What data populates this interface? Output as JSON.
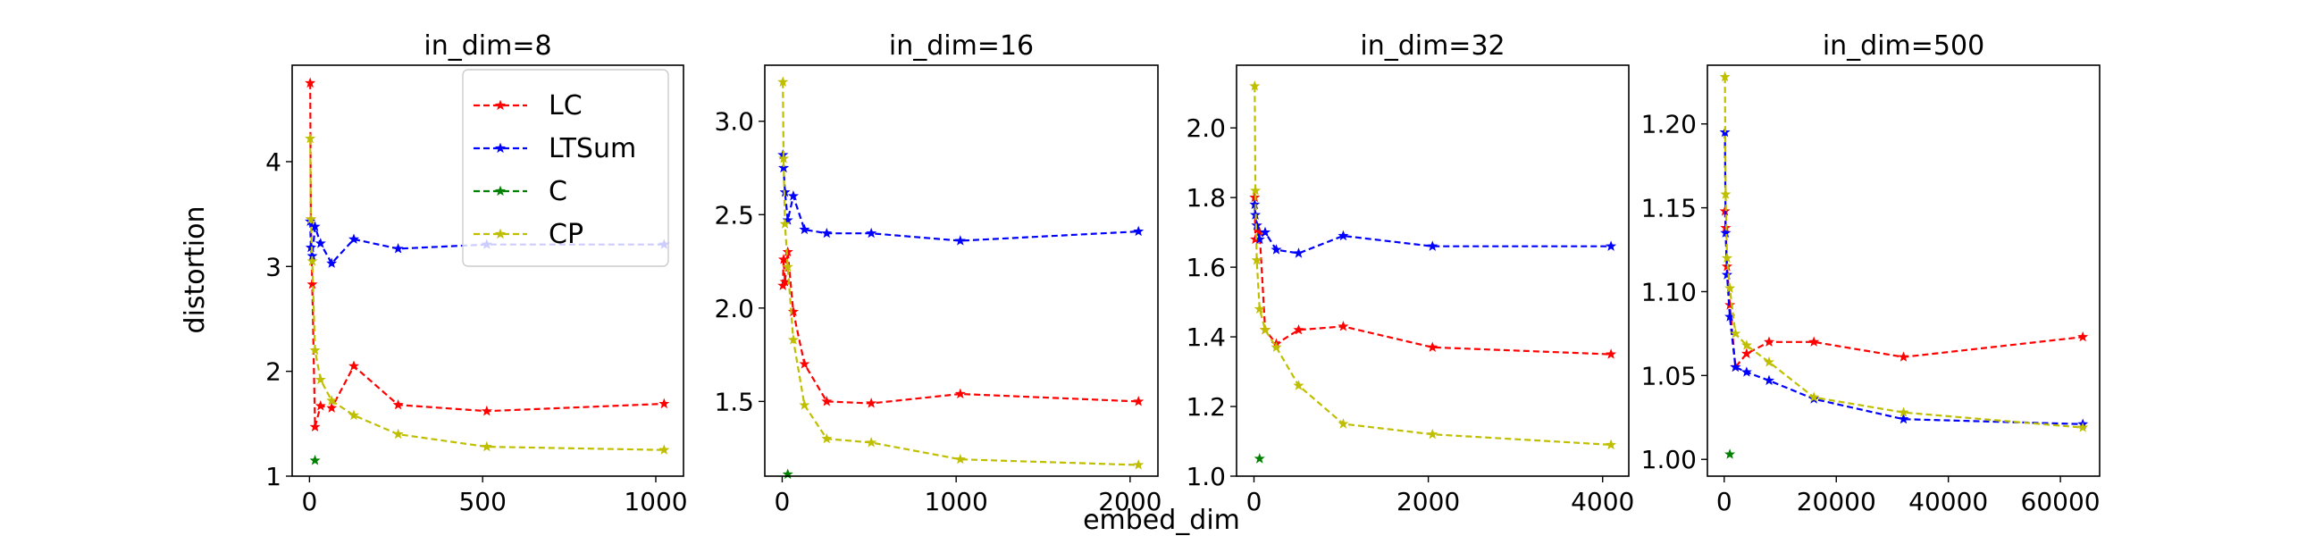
{
  "figure": {
    "ylabel": "distortion",
    "xlabel": "embed_dim"
  },
  "legend": [
    {
      "label": "LC",
      "color": "#ff0000"
    },
    {
      "label": "LTSum",
      "color": "#0000ff"
    },
    {
      "label": "C",
      "color": "#008000"
    },
    {
      "label": "CP",
      "color": "#bfbf00"
    }
  ],
  "chart_data": [
    {
      "type": "line",
      "title": "in_dim=8",
      "xlim": [
        -50,
        1080
      ],
      "ylim": [
        1,
        4.92
      ],
      "xticks": [
        0,
        500,
        1000
      ],
      "yticks": [
        1,
        2,
        3,
        4
      ],
      "series": [
        {
          "name": "LC",
          "color": "#ff0000",
          "x": [
            2,
            4,
            8,
            16,
            32,
            64,
            128,
            256,
            512,
            1024
          ],
          "y": [
            4.75,
            3.45,
            2.83,
            1.47,
            1.67,
            1.65,
            2.05,
            1.68,
            1.62,
            1.69
          ]
        },
        {
          "name": "LTSum",
          "color": "#0000ff",
          "x": [
            2,
            4,
            8,
            16,
            32,
            64,
            128,
            256,
            512,
            1024
          ],
          "y": [
            3.43,
            3.18,
            3.1,
            3.38,
            3.22,
            3.03,
            3.26,
            3.17,
            3.21,
            3.21
          ]
        },
        {
          "name": "C",
          "color": "#008000",
          "x": [
            16
          ],
          "y": [
            1.15
          ]
        },
        {
          "name": "CP",
          "color": "#bfbf00",
          "x": [
            2,
            4,
            8,
            16,
            32,
            64,
            128,
            256,
            512,
            1024
          ],
          "y": [
            4.22,
            3.45,
            3.05,
            2.2,
            1.92,
            1.72,
            1.58,
            1.4,
            1.28,
            1.25
          ]
        }
      ]
    },
    {
      "type": "line",
      "title": "in_dim=16",
      "xlim": [
        -100,
        2160
      ],
      "ylim": [
        1.1,
        3.3
      ],
      "xticks": [
        0,
        1000,
        2000
      ],
      "yticks": [
        1.5,
        2.0,
        2.5,
        3.0
      ],
      "series": [
        {
          "name": "LC",
          "color": "#ff0000",
          "x": [
            4,
            8,
            16,
            32,
            64,
            128,
            256,
            512,
            1024,
            2048
          ],
          "y": [
            2.12,
            2.26,
            2.14,
            2.3,
            1.98,
            1.7,
            1.5,
            1.49,
            1.54,
            1.5
          ]
        },
        {
          "name": "LTSum",
          "color": "#0000ff",
          "x": [
            4,
            8,
            16,
            32,
            64,
            128,
            256,
            512,
            1024,
            2048
          ],
          "y": [
            2.82,
            2.75,
            2.62,
            2.47,
            2.6,
            2.42,
            2.4,
            2.4,
            2.36,
            2.41
          ]
        },
        {
          "name": "C",
          "color": "#008000",
          "x": [
            32
          ],
          "y": [
            1.11
          ]
        },
        {
          "name": "CP",
          "color": "#bfbf00",
          "x": [
            4,
            8,
            16,
            32,
            64,
            128,
            256,
            512,
            1024,
            2048
          ],
          "y": [
            3.21,
            2.8,
            2.45,
            2.22,
            1.83,
            1.48,
            1.3,
            1.28,
            1.19,
            1.16
          ]
        }
      ]
    },
    {
      "type": "line",
      "title": "in_dim=32",
      "xlim": [
        -200,
        4300
      ],
      "ylim": [
        1.0,
        2.18
      ],
      "xticks": [
        0,
        2000,
        4000
      ],
      "yticks": [
        1.0,
        1.2,
        1.4,
        1.6,
        1.8,
        2.0
      ],
      "series": [
        {
          "name": "LC",
          "color": "#ff0000",
          "x": [
            8,
            16,
            32,
            64,
            128,
            256,
            512,
            1024,
            2048,
            4096
          ],
          "y": [
            1.8,
            1.68,
            1.72,
            1.7,
            1.42,
            1.38,
            1.42,
            1.43,
            1.37,
            1.35
          ]
        },
        {
          "name": "LTSum",
          "color": "#0000ff",
          "x": [
            8,
            16,
            32,
            64,
            128,
            256,
            512,
            1024,
            2048,
            4096
          ],
          "y": [
            1.78,
            1.75,
            1.72,
            1.68,
            1.7,
            1.65,
            1.64,
            1.69,
            1.66,
            1.66
          ]
        },
        {
          "name": "C",
          "color": "#008000",
          "x": [
            64
          ],
          "y": [
            1.05
          ]
        },
        {
          "name": "CP",
          "color": "#bfbf00",
          "x": [
            8,
            16,
            32,
            64,
            128,
            256,
            512,
            1024,
            2048,
            4096
          ],
          "y": [
            2.12,
            1.82,
            1.62,
            1.48,
            1.42,
            1.37,
            1.26,
            1.15,
            1.12,
            1.09
          ]
        }
      ]
    },
    {
      "type": "line",
      "title": "in_dim=500",
      "xlim": [
        -3000,
        67000
      ],
      "ylim": [
        0.99,
        1.235
      ],
      "xticks": [
        0,
        20000,
        40000,
        60000
      ],
      "yticks": [
        1.0,
        1.05,
        1.1,
        1.15,
        1.2
      ],
      "series": [
        {
          "name": "LC",
          "color": "#ff0000",
          "x": [
            125,
            250,
            500,
            1000,
            2000,
            4000,
            8000,
            16000,
            32000,
            64000
          ],
          "y": [
            1.148,
            1.138,
            1.115,
            1.092,
            1.055,
            1.063,
            1.07,
            1.07,
            1.061,
            1.073
          ]
        },
        {
          "name": "LTSum",
          "color": "#0000ff",
          "x": [
            125,
            250,
            500,
            1000,
            2000,
            4000,
            8000,
            16000,
            32000,
            64000
          ],
          "y": [
            1.195,
            1.135,
            1.11,
            1.085,
            1.055,
            1.052,
            1.047,
            1.036,
            1.024,
            1.021
          ]
        },
        {
          "name": "C",
          "color": "#008000",
          "x": [
            1000
          ],
          "y": [
            1.003
          ]
        },
        {
          "name": "CP",
          "color": "#bfbf00",
          "x": [
            125,
            250,
            500,
            1000,
            2000,
            4000,
            8000,
            16000,
            32000,
            64000
          ],
          "y": [
            1.228,
            1.158,
            1.12,
            1.102,
            1.075,
            1.068,
            1.058,
            1.037,
            1.028,
            1.019
          ]
        }
      ]
    }
  ]
}
